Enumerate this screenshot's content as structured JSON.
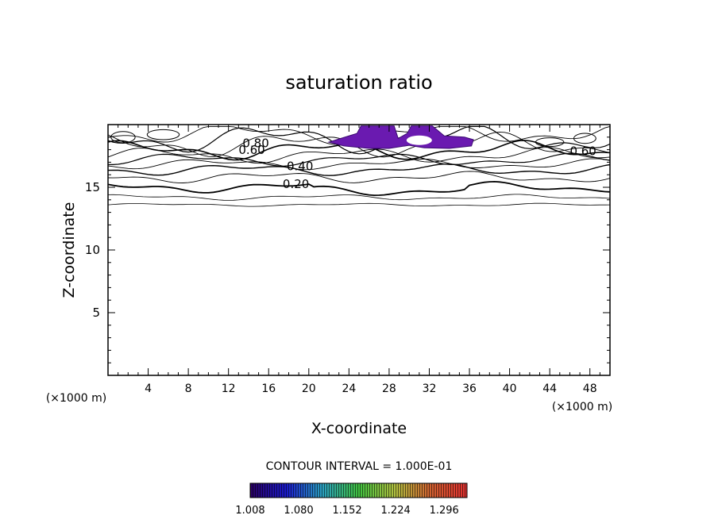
{
  "chart_data": {
    "type": "contour",
    "title": "saturation ratio",
    "xlabel": "X-coordinate",
    "ylabel": "Z-coordinate",
    "x_unit": "(×1000 m)",
    "z_unit": "(×1000 m)",
    "xlim": [
      0,
      50
    ],
    "ylim": [
      0,
      20
    ],
    "x_ticks": [
      "4",
      "8",
      "12",
      "16",
      "20",
      "24",
      "28",
      "32",
      "36",
      "40",
      "44",
      "48"
    ],
    "y_ticks": [
      "5",
      "10",
      "15"
    ],
    "contour_interval_label": "CONTOUR INTERVAL = 1.000E-01",
    "contour_labels": [
      "0.80",
      "0.60",
      "0.60",
      "0.40",
      "0.20"
    ],
    "colorbar": {
      "tick_labels": [
        "1.008",
        "1.080",
        "1.152",
        "1.224",
        "1.296"
      ],
      "min": 1.008,
      "max": 1.33,
      "colors": [
        "#2a0060",
        "#1a1acc",
        "#2aa0c0",
        "#40c040",
        "#b0c040",
        "#d06030",
        "#e03030"
      ]
    },
    "shaded_region_color": "#6a1ab0",
    "shaded_region_range": [
      1.008,
      1.08
    ]
  }
}
